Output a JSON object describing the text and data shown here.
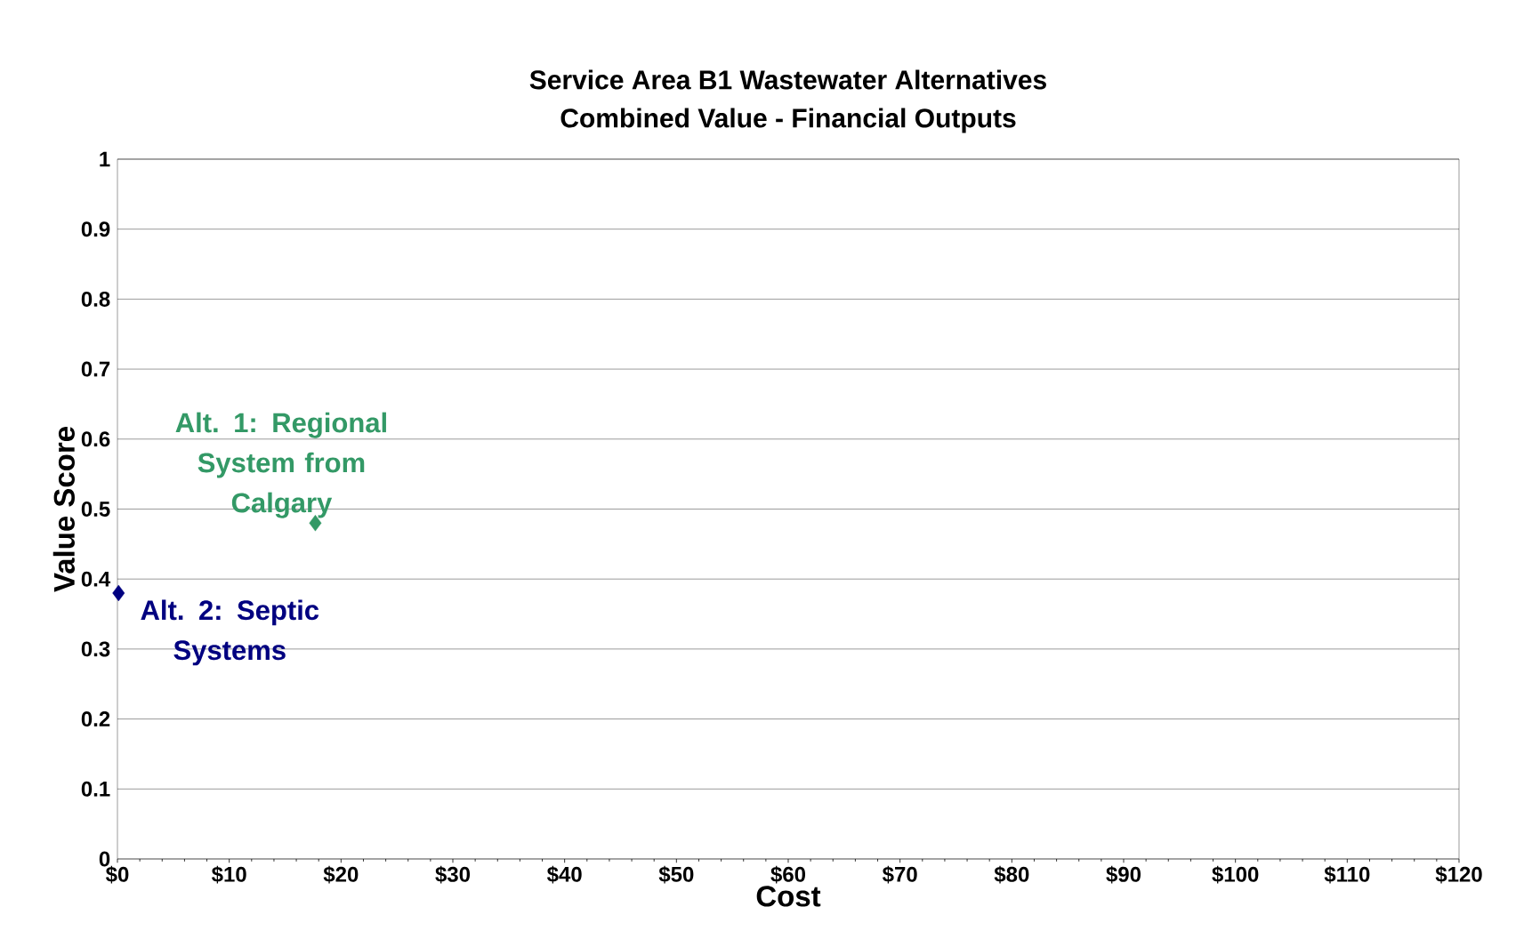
{
  "chart_data": {
    "type": "scatter",
    "title": "Service Area B1 Wastewater Alternatives\nCombined Value - Financial Outputs",
    "xlabel": "Cost",
    "ylabel": "Value Score",
    "xlim": [
      0,
      120
    ],
    "xticks": [
      {
        "value": 0,
        "label": "$0"
      },
      {
        "value": 10,
        "label": "$10"
      },
      {
        "value": 20,
        "label": "$20"
      },
      {
        "value": 30,
        "label": "$30"
      },
      {
        "value": 40,
        "label": "$40"
      },
      {
        "value": 50,
        "label": "$50"
      },
      {
        "value": 60,
        "label": "$60"
      },
      {
        "value": 70,
        "label": "$70"
      },
      {
        "value": 80,
        "label": "$80"
      },
      {
        "value": 90,
        "label": "$90"
      },
      {
        "value": 100,
        "label": "$100"
      },
      {
        "value": 110,
        "label": "$110"
      },
      {
        "value": 120,
        "label": "$120"
      }
    ],
    "ylim": [
      0,
      1
    ],
    "yticks": [
      0,
      0.1,
      0.2,
      0.3,
      0.4,
      0.5,
      0.6,
      0.7,
      0.8,
      0.9,
      1
    ],
    "grid": "y",
    "legend": false,
    "marker": "diamond",
    "series": [
      {
        "name": "Alt. 1: Regional System from Calgary",
        "color": "#339966",
        "x": [
          17.7
        ],
        "values": [
          0.48
        ]
      },
      {
        "name": "Alt. 2: Septic Systems",
        "color": "#000080",
        "x": [
          0.1
        ],
        "values": [
          0.38
        ]
      }
    ]
  }
}
